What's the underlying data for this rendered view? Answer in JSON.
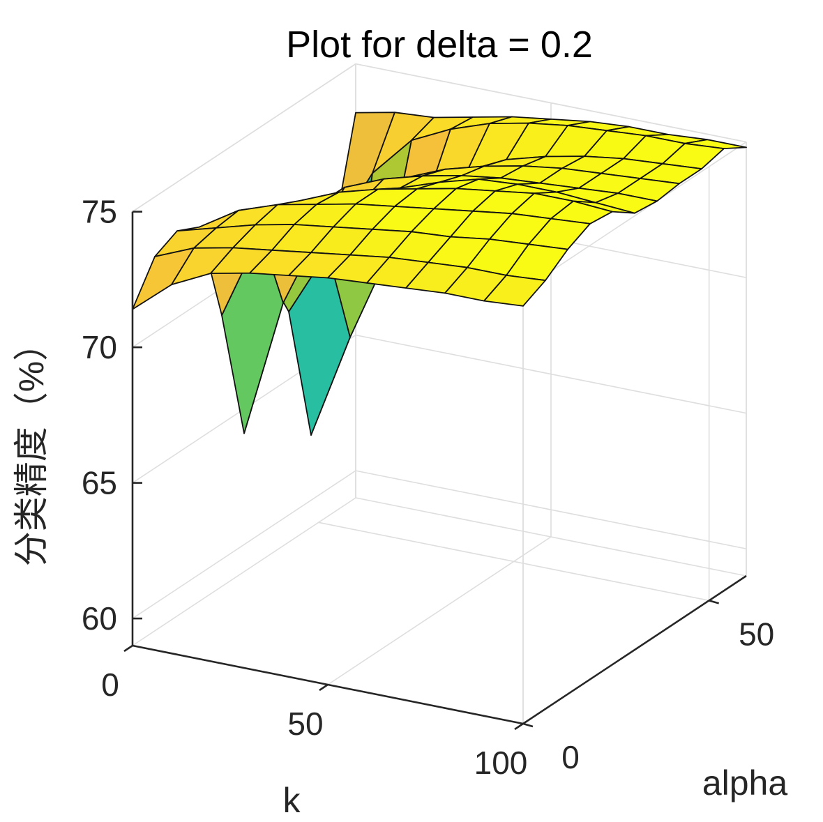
{
  "chart_data": {
    "type": "surface3d",
    "title": "Plot for delta = 0.2",
    "xlabel": "k",
    "ylabel": "alpha",
    "zlabel": "分类精度（%）",
    "x_ticks": [
      "0",
      "50",
      "100"
    ],
    "y_ticks": [
      "0",
      "50"
    ],
    "z_ticks": [
      "60",
      "65",
      "70",
      "75"
    ],
    "xlim": [
      0,
      100
    ],
    "ylim": [
      0,
      60
    ],
    "zlim": [
      59,
      75
    ],
    "grid": true,
    "colormap": "parula",
    "x": [
      0,
      10,
      20,
      30,
      40,
      50,
      60,
      70,
      80,
      90,
      100
    ],
    "y": [
      0,
      6,
      12,
      18,
      24,
      30,
      36,
      42,
      48,
      54,
      60
    ],
    "z": [
      [
        71.4,
        72.6,
        73.3,
        73.6,
        73.8,
        74.0,
        74.1,
        74.2,
        74.3,
        74.3,
        74.4
      ],
      [
        72.8,
        73.4,
        73.7,
        73.9,
        74.1,
        74.3,
        74.5,
        74.6,
        74.7,
        74.7,
        74.8
      ],
      [
        73.2,
        73.6,
        74.0,
        74.3,
        74.5,
        74.7,
        74.9,
        75.0,
        75.2,
        75.3,
        75.4
      ],
      [
        72.8,
        73.7,
        74.2,
        74.5,
        74.8,
        75.0,
        75.2,
        75.4,
        75.6,
        75.7,
        75.8
      ],
      [
        69.0,
        72.3,
        73.8,
        74.4,
        74.8,
        75.1,
        75.4,
        75.6,
        75.8,
        75.8,
        75.7
      ],
      [
        64.1,
        69.2,
        72.3,
        73.5,
        74.3,
        74.8,
        75.2,
        75.3,
        75.3,
        75.2,
        75.1
      ],
      [
        69.5,
        72.0,
        73.2,
        73.8,
        74.2,
        74.5,
        74.7,
        74.8,
        74.9,
        75.0,
        75.0
      ],
      [
        67.5,
        70.0,
        72.4,
        73.3,
        73.9,
        74.3,
        74.6,
        74.8,
        74.9,
        75.0,
        75.1
      ],
      [
        62.4,
        66.3,
        69.7,
        72.1,
        73.3,
        74.0,
        74.4,
        74.7,
        74.9,
        75.0,
        75.1
      ],
      [
        69.2,
        71.8,
        73.3,
        74.0,
        74.5,
        74.8,
        75.0,
        75.1,
        75.2,
        75.2,
        75.3
      ],
      [
        73.2,
        73.5,
        73.6,
        73.9,
        74.2,
        74.4,
        74.6,
        74.7,
        74.7,
        74.8,
        74.8
      ]
    ]
  }
}
